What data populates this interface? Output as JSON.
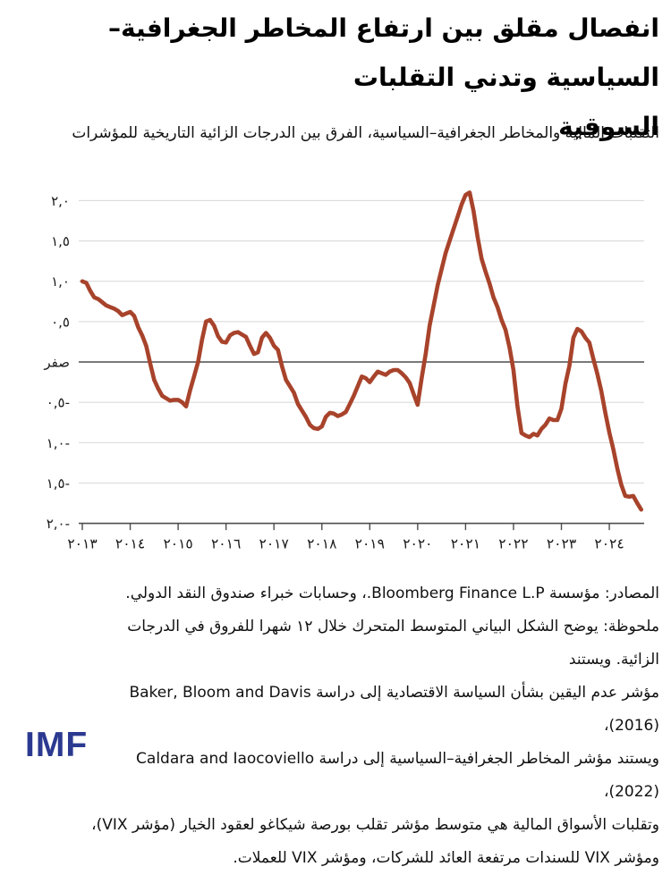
{
  "title": {
    "lines": [
      "انفصال مقلق بين ارتفاع المخاطر الجغرافية–السياسية وتدني التقلبات",
      "السوقية"
    ]
  },
  "subtitle": "التقلبات المالية والمخاطر الجغرافية–السياسية، الفرق بين الدرجات الزائية التاريخية للمؤشرات",
  "chart_data": {
    "type": "line",
    "frequency": "monthly",
    "x_start": "2013-01",
    "x_end": "2024-09",
    "xlim": [
      2013,
      2024.75
    ],
    "ylim": [
      -2.0,
      2.2
    ],
    "grid": "horizontal",
    "legend": "none",
    "line_color": "#A8432B",
    "zero_label": "صفر",
    "y_ticks": [
      {
        "label": "٢,٠",
        "value": 2
      },
      {
        "label": "١,٥",
        "value": 1.5
      },
      {
        "label": "١,٠",
        "value": 1
      },
      {
        "label": "٠,٥",
        "value": 0.5
      },
      {
        "label": "صفر",
        "value": 0
      },
      {
        "label": "٠,٥-",
        "value": -0.5
      },
      {
        "label": "١,٠-",
        "value": -1
      },
      {
        "label": "١,٥-",
        "value": -1.5
      },
      {
        "label": "٢,٠-",
        "value": -2
      }
    ],
    "x_ticks": [
      "٢٠١٣",
      "٢٠١٤",
      "٢٠١٥",
      "٢٠١٦",
      "٢٠١٧",
      "٢٠١٨",
      "٢٠١٩",
      "٢٠٢٠",
      "٢٠٢١",
      "٢٠٢٢",
      "٢٠٢٣",
      "٢٠٢٤"
    ],
    "values": [
      1.0,
      0.98,
      0.88,
      0.8,
      0.78,
      0.74,
      0.7,
      0.68,
      0.66,
      0.63,
      0.58,
      0.6,
      0.62,
      0.57,
      0.43,
      0.33,
      0.2,
      -0.02,
      -0.22,
      -0.33,
      -0.42,
      -0.45,
      -0.48,
      -0.47,
      -0.47,
      -0.5,
      -0.55,
      -0.35,
      -0.18,
      0.0,
      0.28,
      0.5,
      0.52,
      0.45,
      0.32,
      0.25,
      0.24,
      0.33,
      0.36,
      0.37,
      0.34,
      0.31,
      0.2,
      0.1,
      0.12,
      0.3,
      0.36,
      0.3,
      0.2,
      0.15,
      -0.05,
      -0.22,
      -0.3,
      -0.38,
      -0.52,
      -0.6,
      -0.68,
      -0.78,
      -0.82,
      -0.83,
      -0.8,
      -0.68,
      -0.63,
      -0.64,
      -0.67,
      -0.65,
      -0.62,
      -0.52,
      -0.42,
      -0.3,
      -0.18,
      -0.2,
      -0.25,
      -0.18,
      -0.12,
      -0.14,
      -0.16,
      -0.12,
      -0.1,
      -0.1,
      -0.14,
      -0.19,
      -0.26,
      -0.4,
      -0.53,
      -0.2,
      0.1,
      0.45,
      0.7,
      0.95,
      1.15,
      1.35,
      1.5,
      1.65,
      1.8,
      1.95,
      2.07,
      2.1,
      1.87,
      1.55,
      1.28,
      1.12,
      0.97,
      0.8,
      0.68,
      0.52,
      0.4,
      0.18,
      -0.1,
      -0.55,
      -0.88,
      -0.91,
      -0.93,
      -0.89,
      -0.91,
      -0.83,
      -0.78,
      -0.7,
      -0.72,
      -0.72,
      -0.58,
      -0.27,
      -0.05,
      0.3,
      0.41,
      0.38,
      0.3,
      0.24,
      0.04,
      -0.15,
      -0.36,
      -0.63,
      -0.87,
      -1.08,
      -1.32,
      -1.52,
      -1.66,
      -1.67,
      -1.66,
      -1.75,
      -1.83
    ]
  },
  "footer": {
    "lines": [
      "المصادر: مؤسسة Bloomberg Finance L.P.، وحسابات خبراء صندوق النقد الدولي.",
      "ملحوظة: يوضح الشكل البياني المتوسط المتحرك خلال ١٢ شهرا للفروق في الدرجات الزائية. ويستند",
      "مؤشر عدم اليقين بشأن السياسة الاقتصادية إلى دراسة Baker, Bloom and Davis (2016)،",
      "ويستند مؤشر المخاطر الجغرافية–السياسية إلى دراسة Caldara and Iaocoviello (2022)،",
      "وتقلبات الأسواق المالية هي متوسط مؤشر تقلب بورصة شيكاغو لعقود الخيار (مؤشر VIX)،",
      "ومؤشر VIX للسندات مرتفعة العائد للشركات، ومؤشر VIX للعملات."
    ]
  },
  "logo": {
    "text": "IMF",
    "color": "#2B3990"
  }
}
